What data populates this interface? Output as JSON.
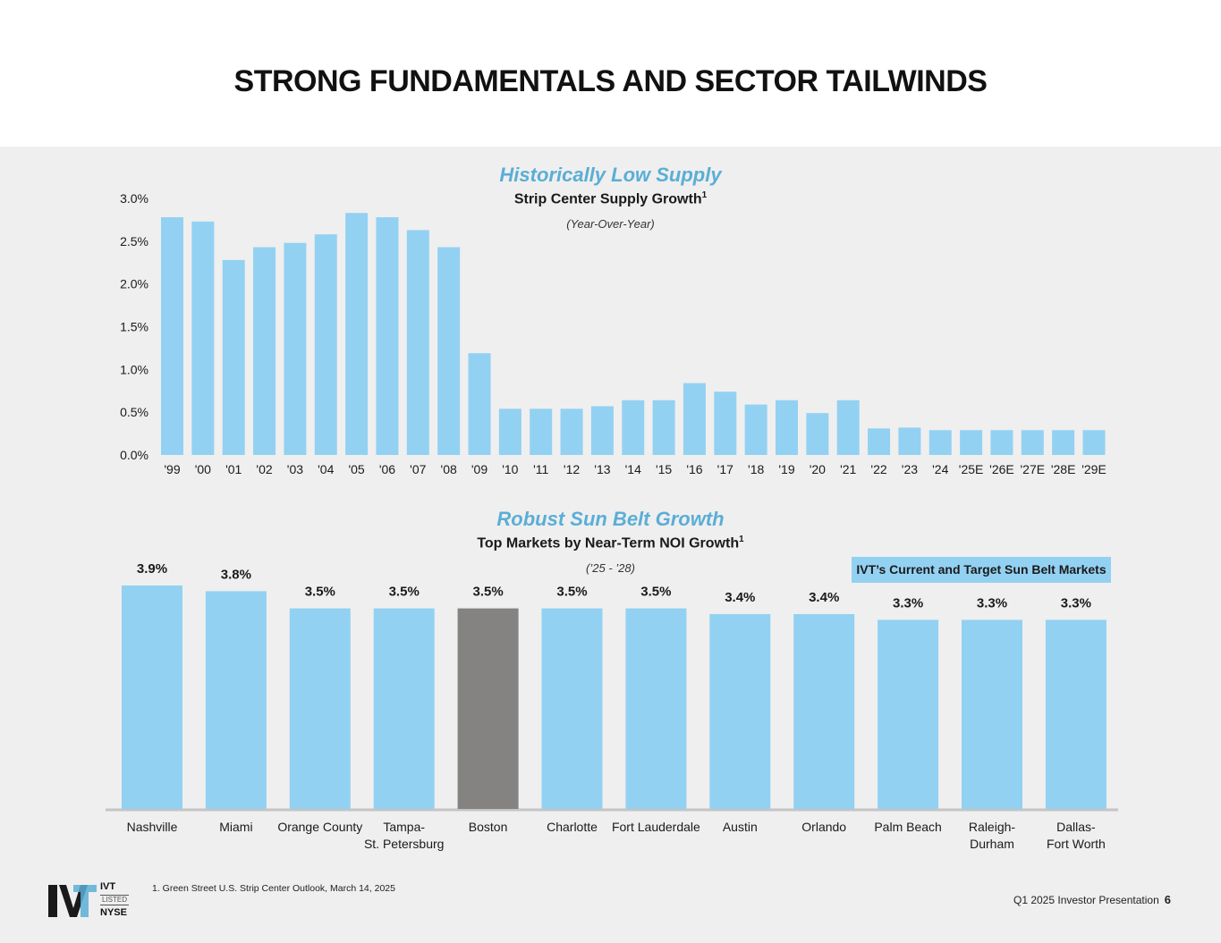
{
  "page": {
    "title": "STRONG FUNDAMENTALS AND SECTOR TAILWINDS",
    "footnote": "1.  Green Street U.S. Strip Center Outlook, March 14, 2025",
    "footer_label": "Q1 2025 Investor Presentation",
    "page_number": "6",
    "logo": {
      "ticker": "IVT",
      "listed": "LISTED",
      "exchange": "NYSE"
    },
    "colors": {
      "bar": "#93d1f2",
      "highlight": "#858382",
      "accent": "#5aaed6"
    }
  },
  "chart_data": [
    {
      "type": "bar",
      "title": "Historically Low Supply",
      "subtitle": "Strip Center Supply Growth",
      "subtitle_sup": "1",
      "note": "(Year-Over-Year)",
      "categories": [
        "'99",
        "'00",
        "'01",
        "'02",
        "'03",
        "'04",
        "'05",
        "'06",
        "'07",
        "'08",
        "'09",
        "'10",
        "'11",
        "'12",
        "'13",
        "'14",
        "'15",
        "'16",
        "'17",
        "'18",
        "'19",
        "'20",
        "'21",
        "'22",
        "'23",
        "'24",
        "'25E",
        "'26E",
        "'27E",
        "'28E",
        "'29E"
      ],
      "values": [
        2.78,
        2.73,
        2.28,
        2.43,
        2.48,
        2.58,
        2.83,
        2.78,
        2.63,
        2.43,
        1.19,
        0.54,
        0.54,
        0.54,
        0.57,
        0.64,
        0.64,
        0.84,
        0.74,
        0.59,
        0.64,
        0.49,
        0.64,
        0.31,
        0.32,
        0.29,
        0.29,
        0.29,
        0.29,
        0.29,
        0.29
      ],
      "y_ticks": [
        "0.0%",
        "0.5%",
        "1.0%",
        "1.5%",
        "2.0%",
        "2.5%",
        "3.0%"
      ],
      "ylim": [
        0,
        3.0
      ]
    },
    {
      "type": "bar",
      "title": "Robust Sun Belt Growth",
      "subtitle": "Top Markets by Near-Term NOI Growth",
      "subtitle_sup": "1",
      "note": "(’25 - ’28)",
      "legend": "IVT’s Current and Target Sun Belt Markets",
      "legend_placement": "top-right",
      "categories": [
        [
          "Nashville"
        ],
        [
          "Miami"
        ],
        [
          "Orange County"
        ],
        [
          "Tampa-",
          "St. Petersburg"
        ],
        [
          "Boston"
        ],
        [
          "Charlotte"
        ],
        [
          "Fort Lauderdale"
        ],
        [
          "Austin"
        ],
        [
          "Orlando"
        ],
        [
          "Palm Beach"
        ],
        [
          "Raleigh-",
          "Durham"
        ],
        [
          "Dallas-",
          "Fort Worth"
        ]
      ],
      "values": [
        3.9,
        3.8,
        3.5,
        3.5,
        3.5,
        3.5,
        3.5,
        3.4,
        3.4,
        3.3,
        3.3,
        3.3
      ],
      "data_labels": [
        "3.9%",
        "3.8%",
        "3.5%",
        "3.5%",
        "3.5%",
        "3.5%",
        "3.5%",
        "3.4%",
        "3.4%",
        "3.3%",
        "3.3%",
        "3.3%"
      ],
      "highlighted": [
        false,
        false,
        false,
        false,
        true,
        false,
        false,
        false,
        false,
        false,
        false,
        false
      ]
    }
  ]
}
